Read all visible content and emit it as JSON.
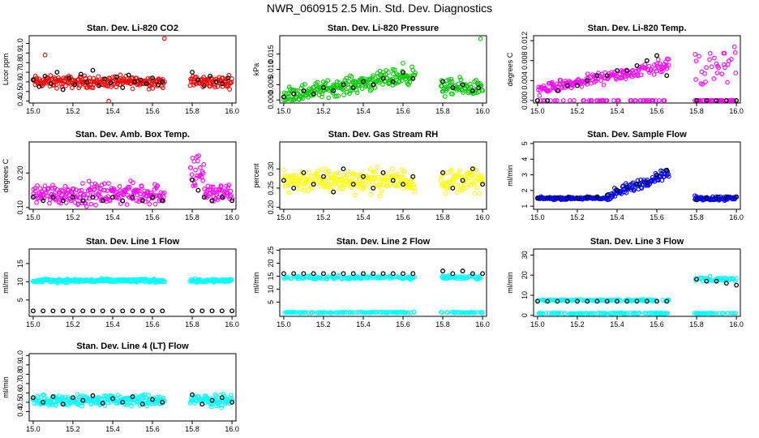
{
  "figure": {
    "title": "NWR_060915  2.5 Min. Std. Dev. Diagnostics"
  },
  "colors": {
    "red": "#ff0000",
    "green": "#00cc00",
    "magenta": "#ff00ff",
    "yellow": "#ffff00",
    "blue": "#0000ff",
    "cyan": "#00ffff",
    "black": "#000000"
  },
  "chart_data": [
    {
      "type": "scatter",
      "title": "Stan. Dev. Li-820 CO2",
      "ylabel": "Licor ppm",
      "color": "#ff0000",
      "xlim": [
        14.98,
        16.02
      ],
      "ylim": [
        0.38,
        1.08
      ],
      "x_ticks": [
        "15.0",
        "15.2",
        "15.4",
        "15.6",
        "15.8",
        "16.0"
      ],
      "y_ticks": [
        "0.4",
        "0.5",
        "0.6",
        "0.7",
        "0.8",
        "0.9",
        "1.0"
      ],
      "segments": [
        {
          "from": 15.0,
          "to": 15.66
        },
        {
          "from": 15.79,
          "to": 16.0
        }
      ],
      "colored_series": {
        "base": 0.6,
        "spread": 0.09,
        "outliers": [
          [
            15.66,
            1.05
          ],
          [
            15.38,
            0.4
          ],
          [
            15.06,
            0.88
          ]
        ]
      },
      "black_series": {
        "base": 0.6,
        "spread": 0.06,
        "step": 0.03
      },
      "black_points": [
        [
          15.0,
          0.62
        ],
        [
          15.03,
          0.55
        ],
        [
          15.06,
          0.66
        ],
        [
          15.09,
          0.58
        ],
        [
          15.12,
          0.7
        ],
        [
          15.15,
          0.52
        ],
        [
          15.18,
          0.64
        ],
        [
          15.21,
          0.57
        ],
        [
          15.24,
          0.68
        ],
        [
          15.27,
          0.6
        ],
        [
          15.3,
          0.72
        ],
        [
          15.33,
          0.56
        ],
        [
          15.36,
          0.63
        ],
        [
          15.39,
          0.59
        ],
        [
          15.42,
          0.65
        ],
        [
          15.45,
          0.54
        ],
        [
          15.48,
          0.67
        ],
        [
          15.51,
          0.6
        ],
        [
          15.54,
          0.62
        ],
        [
          15.57,
          0.58
        ],
        [
          15.6,
          0.64
        ],
        [
          15.63,
          0.57
        ],
        [
          15.65,
          0.6
        ],
        [
          15.8,
          0.7
        ],
        [
          15.83,
          0.62
        ],
        [
          15.86,
          0.56
        ],
        [
          15.89,
          0.66
        ],
        [
          15.92,
          0.6
        ],
        [
          15.95,
          0.58
        ],
        [
          15.98,
          0.64
        ]
      ]
    },
    {
      "type": "scatter",
      "title": "Stan. Dev. Li-820 Pressure",
      "ylabel": "kPa",
      "color": "#00cc00",
      "xlim": [
        14.98,
        16.02
      ],
      "ylim": [
        -0.001,
        0.021
      ],
      "x_ticks": [
        "15.0",
        "15.2",
        "15.4",
        "15.6",
        "15.8",
        "16.0"
      ],
      "y_ticks": [
        "0.000",
        "0.005",
        "0.010",
        "0.015"
      ],
      "segments": [
        {
          "from": 15.0,
          "to": 15.66
        },
        {
          "from": 15.79,
          "to": 16.0
        }
      ],
      "colored_series": {
        "points": [
          [
            15.0,
            0.001
          ],
          [
            15.05,
            0.003
          ],
          [
            15.1,
            0.002
          ],
          [
            15.15,
            0.004
          ],
          [
            15.2,
            0.003
          ],
          [
            15.25,
            0.005
          ],
          [
            15.3,
            0.004
          ],
          [
            15.35,
            0.006
          ],
          [
            15.4,
            0.007
          ],
          [
            15.45,
            0.008
          ],
          [
            15.5,
            0.009
          ],
          [
            15.55,
            0.01
          ],
          [
            15.6,
            0.012
          ],
          [
            15.62,
            0.008
          ],
          [
            15.8,
            0.006
          ],
          [
            15.85,
            0.004
          ],
          [
            15.9,
            0.005
          ],
          [
            15.95,
            0.003
          ],
          [
            15.99,
            0.02
          ]
        ]
      },
      "black_points": [
        [
          15.0,
          0.001
        ],
        [
          15.05,
          0.002
        ],
        [
          15.1,
          0.003
        ],
        [
          15.15,
          0.002
        ],
        [
          15.2,
          0.004
        ],
        [
          15.25,
          0.003
        ],
        [
          15.3,
          0.005
        ],
        [
          15.35,
          0.004
        ],
        [
          15.4,
          0.006
        ],
        [
          15.45,
          0.005
        ],
        [
          15.5,
          0.007
        ],
        [
          15.55,
          0.006
        ],
        [
          15.6,
          0.009
        ],
        [
          15.65,
          0.007
        ],
        [
          15.8,
          0.006
        ],
        [
          15.85,
          0.004
        ],
        [
          15.9,
          0.005
        ],
        [
          15.95,
          0.003
        ],
        [
          15.98,
          0.004
        ]
      ]
    },
    {
      "type": "scatter",
      "title": "Stan. Dev. Li-820 Temp.",
      "ylabel": "degrees C",
      "color": "#ff00ff",
      "xlim": [
        14.98,
        16.02
      ],
      "ylim": [
        -0.0005,
        0.013
      ],
      "x_ticks": [
        "15.0",
        "15.2",
        "15.4",
        "15.6",
        "15.8",
        "16.0"
      ],
      "y_ticks": [
        "0.000",
        "0.004",
        "0.008",
        "0.012"
      ],
      "segments": [
        {
          "from": 15.0,
          "to": 15.66
        },
        {
          "from": 15.79,
          "to": 16.0
        }
      ],
      "black_points": [
        [
          15.0,
          0.0
        ],
        [
          15.05,
          0.0
        ],
        [
          15.1,
          0.002
        ],
        [
          15.15,
          0.003
        ],
        [
          15.2,
          0.003
        ],
        [
          15.25,
          0.004
        ],
        [
          15.3,
          0.005
        ],
        [
          15.35,
          0.005
        ],
        [
          15.4,
          0.006
        ],
        [
          15.45,
          0.006
        ],
        [
          15.5,
          0.007
        ],
        [
          15.55,
          0.008
        ],
        [
          15.6,
          0.009
        ],
        [
          15.65,
          0.005
        ],
        [
          15.8,
          0.0
        ],
        [
          15.85,
          0.0
        ],
        [
          15.9,
          0.0
        ],
        [
          15.95,
          0.0
        ],
        [
          16.0,
          0.0
        ]
      ]
    },
    {
      "type": "scatter",
      "title": "Stan. Dev. Amb. Box Temp.",
      "ylabel": "degrees C",
      "color": "#ff00ff",
      "xlim": [
        14.98,
        16.02
      ],
      "ylim": [
        0.095,
        0.29
      ],
      "x_ticks": [
        "15.0",
        "15.2",
        "15.4",
        "15.6",
        "15.8",
        "16.0"
      ],
      "y_ticks": [
        "0.10",
        "0.20"
      ],
      "segments": [
        {
          "from": 15.0,
          "to": 15.66
        },
        {
          "from": 15.79,
          "to": 16.0
        }
      ],
      "black_points": [
        [
          15.0,
          0.13
        ],
        [
          15.05,
          0.12
        ],
        [
          15.1,
          0.13
        ],
        [
          15.15,
          0.12
        ],
        [
          15.2,
          0.13
        ],
        [
          15.25,
          0.12
        ],
        [
          15.3,
          0.13
        ],
        [
          15.35,
          0.12
        ],
        [
          15.4,
          0.13
        ],
        [
          15.45,
          0.12
        ],
        [
          15.5,
          0.13
        ],
        [
          15.55,
          0.12
        ],
        [
          15.6,
          0.13
        ],
        [
          15.65,
          0.12
        ],
        [
          15.8,
          0.18
        ],
        [
          15.83,
          0.15
        ],
        [
          15.86,
          0.13
        ],
        [
          15.9,
          0.12
        ],
        [
          15.95,
          0.13
        ],
        [
          16.0,
          0.12
        ]
      ]
    },
    {
      "type": "scatter",
      "title": "Stan. Dev. Gas Stream RH",
      "ylabel": "percent",
      "color": "#ffff00",
      "xlim": [
        14.98,
        16.02
      ],
      "ylim": [
        0.195,
        0.37
      ],
      "x_ticks": [
        "15.0",
        "15.2",
        "15.4",
        "15.6",
        "15.8",
        "16.0"
      ],
      "y_ticks": [
        "0.20",
        "0.25",
        "0.30"
      ],
      "segments": [
        {
          "from": 15.0,
          "to": 15.66
        },
        {
          "from": 15.79,
          "to": 16.0
        }
      ],
      "black_points": [
        [
          15.0,
          0.27
        ],
        [
          15.05,
          0.25
        ],
        [
          15.1,
          0.29
        ],
        [
          15.15,
          0.26
        ],
        [
          15.2,
          0.28
        ],
        [
          15.25,
          0.24
        ],
        [
          15.3,
          0.3
        ],
        [
          15.35,
          0.26
        ],
        [
          15.4,
          0.28
        ],
        [
          15.45,
          0.25
        ],
        [
          15.5,
          0.29
        ],
        [
          15.55,
          0.27
        ],
        [
          15.6,
          0.26
        ],
        [
          15.65,
          0.28
        ],
        [
          15.8,
          0.29
        ],
        [
          15.85,
          0.25
        ],
        [
          15.9,
          0.27
        ],
        [
          15.95,
          0.3
        ],
        [
          16.0,
          0.26
        ]
      ]
    },
    {
      "type": "scatter",
      "title": "Stan. Dev. Sample Flow",
      "ylabel": "ml/min",
      "color": "#0000ff",
      "xlim": [
        14.98,
        16.02
      ],
      "ylim": [
        0.8,
        5.1
      ],
      "x_ticks": [
        "15.0",
        "15.2",
        "15.4",
        "15.6",
        "15.8",
        "16.0"
      ],
      "y_ticks": [
        "1",
        "2",
        "3",
        "4",
        "5"
      ],
      "segments": [
        {
          "from": 15.0,
          "to": 15.66
        },
        {
          "from": 15.79,
          "to": 16.0
        }
      ],
      "black_points": [
        [
          15.0,
          1.5
        ],
        [
          15.05,
          1.5
        ],
        [
          15.1,
          1.5
        ],
        [
          15.15,
          1.5
        ],
        [
          15.2,
          1.5
        ],
        [
          15.25,
          1.6
        ],
        [
          15.3,
          1.6
        ],
        [
          15.35,
          1.7
        ],
        [
          15.4,
          2.0
        ],
        [
          15.45,
          2.2
        ],
        [
          15.5,
          2.4
        ],
        [
          15.55,
          2.5
        ],
        [
          15.6,
          3.0
        ],
        [
          15.65,
          3.3
        ],
        [
          15.8,
          1.4
        ],
        [
          15.85,
          1.5
        ],
        [
          15.9,
          1.5
        ],
        [
          15.95,
          1.6
        ],
        [
          16.0,
          1.6
        ]
      ]
    },
    {
      "type": "scatter",
      "title": "Stan. Dev. Line 1 Flow",
      "ylabel": "ml/min",
      "color": "#00ffff",
      "xlim": [
        14.98,
        16.02
      ],
      "ylim": [
        0.5,
        19.0
      ],
      "x_ticks": [
        "15.0",
        "15.2",
        "15.4",
        "15.6",
        "15.8",
        "16.0"
      ],
      "y_ticks": [
        "5",
        "10",
        "15"
      ],
      "segments": [
        {
          "from": 15.0,
          "to": 15.66
        },
        {
          "from": 15.79,
          "to": 16.0
        }
      ],
      "black_points": [
        [
          15.0,
          2.0
        ],
        [
          15.05,
          2.0
        ],
        [
          15.1,
          2.0
        ],
        [
          15.15,
          2.0
        ],
        [
          15.2,
          2.0
        ],
        [
          15.25,
          2.0
        ],
        [
          15.3,
          2.0
        ],
        [
          15.35,
          2.0
        ],
        [
          15.4,
          2.0
        ],
        [
          15.45,
          2.0
        ],
        [
          15.5,
          2.0
        ],
        [
          15.55,
          2.0
        ],
        [
          15.6,
          2.0
        ],
        [
          15.65,
          2.0
        ],
        [
          15.8,
          2.0
        ],
        [
          15.85,
          2.0
        ],
        [
          15.9,
          2.0
        ],
        [
          15.95,
          2.0
        ],
        [
          16.0,
          2.0
        ]
      ]
    },
    {
      "type": "scatter",
      "title": "Stan. Dev. Line 2 Flow",
      "ylabel": "ml/min",
      "color": "#00ffff",
      "xlim": [
        14.98,
        16.02
      ],
      "ylim": [
        -0.5,
        25.5
      ],
      "x_ticks": [
        "15.0",
        "15.2",
        "15.4",
        "15.6",
        "15.8",
        "16.0"
      ],
      "y_ticks": [
        "5",
        "10",
        "15",
        "20",
        "25"
      ],
      "segments": [
        {
          "from": 15.0,
          "to": 15.66
        },
        {
          "from": 15.79,
          "to": 16.0
        }
      ],
      "black_points": [
        [
          15.0,
          16.0
        ],
        [
          15.05,
          16.0
        ],
        [
          15.1,
          16.0
        ],
        [
          15.15,
          16.0
        ],
        [
          15.2,
          16.0
        ],
        [
          15.25,
          16.0
        ],
        [
          15.3,
          16.0
        ],
        [
          15.35,
          16.0
        ],
        [
          15.4,
          16.0
        ],
        [
          15.45,
          16.0
        ],
        [
          15.5,
          16.0
        ],
        [
          15.55,
          16.0
        ],
        [
          15.6,
          16.0
        ],
        [
          15.65,
          16.0
        ],
        [
          15.8,
          17.0
        ],
        [
          15.85,
          16.0
        ],
        [
          15.9,
          17.0
        ],
        [
          15.95,
          16.0
        ],
        [
          16.0,
          16.0
        ]
      ]
    },
    {
      "type": "scatter",
      "title": "Stan. Dev. Line 3 Flow",
      "ylabel": "ml/min",
      "color": "#00ffff",
      "xlim": [
        14.98,
        16.02
      ],
      "ylim": [
        -0.5,
        33.0
      ],
      "x_ticks": [
        "15.0",
        "15.2",
        "15.4",
        "15.6",
        "15.8",
        "16.0"
      ],
      "y_ticks": [
        "0",
        "10",
        "20",
        "30"
      ],
      "segments": [
        {
          "from": 15.0,
          "to": 15.66
        },
        {
          "from": 15.79,
          "to": 16.0
        }
      ],
      "black_points": [
        [
          15.0,
          7.0
        ],
        [
          15.05,
          7.0
        ],
        [
          15.1,
          7.0
        ],
        [
          15.15,
          7.0
        ],
        [
          15.2,
          7.0
        ],
        [
          15.25,
          7.0
        ],
        [
          15.3,
          7.0
        ],
        [
          15.35,
          7.0
        ],
        [
          15.4,
          7.0
        ],
        [
          15.45,
          7.0
        ],
        [
          15.5,
          7.0
        ],
        [
          15.55,
          7.0
        ],
        [
          15.6,
          7.0
        ],
        [
          15.65,
          7.0
        ],
        [
          15.8,
          18.0
        ],
        [
          15.85,
          17.0
        ],
        [
          15.9,
          17.0
        ],
        [
          15.95,
          16.0
        ],
        [
          16.0,
          15.0
        ]
      ]
    },
    {
      "type": "scatter",
      "title": "Stan. Dev. Line 4 (LT) Flow",
      "ylabel": "ml/min",
      "color": "#00ffff",
      "xlim": [
        14.98,
        16.02
      ],
      "ylim": [
        0.3,
        1.02
      ],
      "x_ticks": [
        "15.0",
        "15.2",
        "15.4",
        "15.6",
        "15.8",
        "16.0"
      ],
      "y_ticks": [
        "0.4",
        "0.5",
        "0.6",
        "0.7",
        "0.8",
        "0.9",
        "1.0"
      ],
      "segments": [
        {
          "from": 15.0,
          "to": 15.66
        },
        {
          "from": 15.79,
          "to": 16.0
        }
      ],
      "black_points": [
        [
          15.0,
          0.55
        ],
        [
          15.05,
          0.5
        ],
        [
          15.1,
          0.56
        ],
        [
          15.15,
          0.48
        ],
        [
          15.2,
          0.55
        ],
        [
          15.25,
          0.52
        ],
        [
          15.3,
          0.57
        ],
        [
          15.35,
          0.49
        ],
        [
          15.4,
          0.54
        ],
        [
          15.45,
          0.5
        ],
        [
          15.5,
          0.56
        ],
        [
          15.55,
          0.48
        ],
        [
          15.6,
          0.53
        ],
        [
          15.65,
          0.5
        ],
        [
          15.8,
          0.58
        ],
        [
          15.85,
          0.48
        ],
        [
          15.9,
          0.52
        ],
        [
          15.95,
          0.55
        ],
        [
          16.0,
          0.5
        ]
      ]
    }
  ]
}
